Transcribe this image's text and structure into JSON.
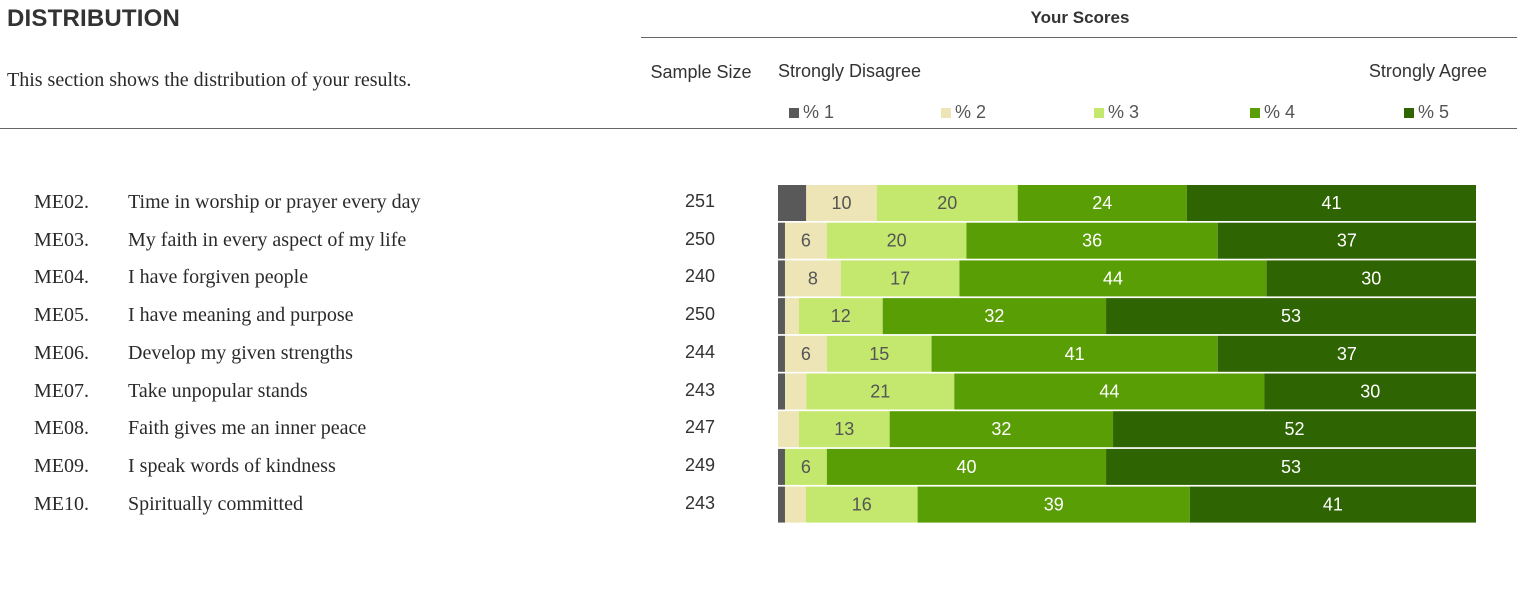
{
  "header": {
    "title": "DISTRIBUTION",
    "subtitle": "This section shows the distribution of your results.",
    "scores_title": "Your Scores",
    "sample_size_label": "Sample Size",
    "disagree_label": "Strongly Disagree",
    "agree_label": "Strongly Agree"
  },
  "legend": [
    {
      "label": "% 1",
      "color": "#595959"
    },
    {
      "label": "% 2",
      "color": "#ede5b6"
    },
    {
      "label": "% 3",
      "color": "#c4e86e"
    },
    {
      "label": "% 4",
      "color": "#5a9e06"
    },
    {
      "label": "% 5",
      "color": "#2e6402"
    }
  ],
  "chart_data": {
    "type": "bar",
    "orientation": "horizontal",
    "stacked": true,
    "xlim": [
      0,
      100
    ],
    "categories": [
      {
        "code": "ME02.",
        "label": "Time in worship or prayer every day",
        "sample_size": "251"
      },
      {
        "code": "ME03.",
        "label": "My faith in every aspect of my life",
        "sample_size": "250"
      },
      {
        "code": "ME04.",
        "label": "I have forgiven people",
        "sample_size": "240"
      },
      {
        "code": "ME05.",
        "label": "I have meaning and purpose",
        "sample_size": "250"
      },
      {
        "code": "ME06.",
        "label": "Develop my given strengths",
        "sample_size": "244"
      },
      {
        "code": "ME07.",
        "label": "Take unpopular stands",
        "sample_size": "243"
      },
      {
        "code": "ME08.",
        "label": "Faith gives me an inner peace",
        "sample_size": "247"
      },
      {
        "code": "ME09.",
        "label": "I speak words of kindness",
        "sample_size": "249"
      },
      {
        "code": "ME10.",
        "label": "Spiritually committed",
        "sample_size": "243"
      }
    ],
    "series": [
      {
        "name": "% 1",
        "values": [
          4,
          1,
          1,
          1,
          1,
          1,
          0,
          1,
          1
        ],
        "labels": [
          "",
          "",
          "",
          "",
          "",
          "",
          "",
          "",
          ""
        ]
      },
      {
        "name": "% 2",
        "values": [
          10,
          6,
          8,
          2,
          6,
          3,
          3,
          0,
          3
        ],
        "labels": [
          "10",
          "6",
          "8",
          "",
          "6",
          "",
          "",
          "",
          ""
        ]
      },
      {
        "name": "% 3",
        "values": [
          20,
          20,
          17,
          12,
          15,
          21,
          13,
          6,
          16
        ],
        "labels": [
          "20",
          "20",
          "17",
          "12",
          "15",
          "21",
          "13",
          "6",
          "16"
        ]
      },
      {
        "name": "% 4",
        "values": [
          24,
          36,
          44,
          32,
          41,
          44,
          32,
          40,
          39
        ],
        "labels": [
          "24",
          "36",
          "44",
          "32",
          "41",
          "44",
          "32",
          "40",
          "39"
        ]
      },
      {
        "name": "% 5",
        "values": [
          41,
          37,
          30,
          53,
          37,
          30,
          52,
          53,
          41
        ],
        "labels": [
          "41",
          "37",
          "30",
          "53",
          "37",
          "30",
          "52",
          "53",
          "41"
        ]
      }
    ]
  }
}
